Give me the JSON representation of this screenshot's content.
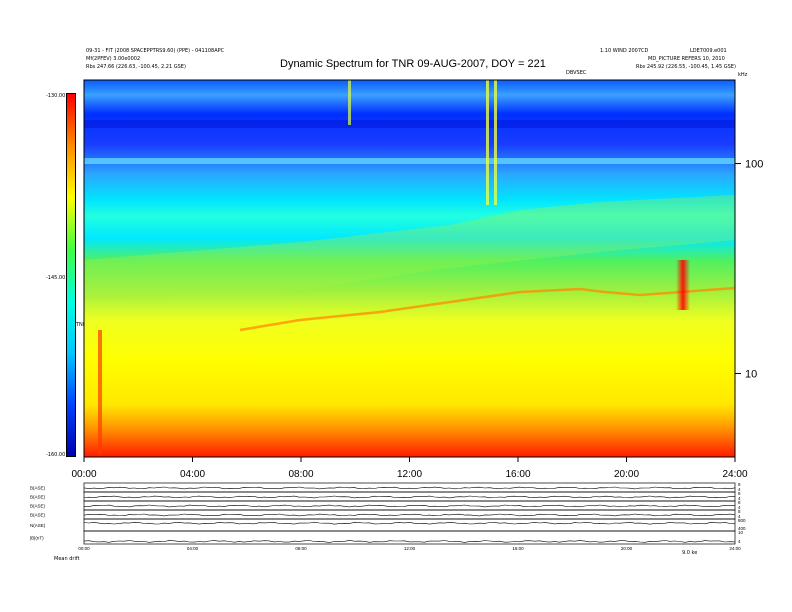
{
  "header": {
    "title": "Dynamic Spectrum for TNR 09-AUG-2007, DOY = 221",
    "left_line1": "09-31 - FIT (2008 SPACEPPTRS9.60) (PPE) - 041108APC",
    "left_line2": "Mf(2PFEV) 3.00e0002",
    "left_line3": "Rbs   247.66 (226.63, -100.45, 2.21 GSE)",
    "right_line1": "1.10 WIND 2007CD",
    "right_line2": "LDE7009.e001",
    "right_line3": "MD_PICTURE REFERS 10, 2010",
    "right_line4": "Rbs   245.92 (226.55, -100.45, 1.45 GSE)",
    "center_note": "DBVSEC",
    "freq_unit": "kHz"
  },
  "colorbar": {
    "tick_labels": [
      "-130.00",
      "-145.00",
      "-160.00"
    ],
    "unit_label": "TNR",
    "colors": [
      "#0000b0",
      "#0044ff",
      "#00c8ff",
      "#00ffe0",
      "#40ff40",
      "#ffff00",
      "#ff8c00",
      "#ff0000"
    ]
  },
  "chart_data": {
    "type": "heatmap",
    "title": "Dynamic Spectrum for TNR 09-AUG-2007, DOY = 221",
    "x": {
      "label": "",
      "ticks": [
        "00:00",
        "04:00",
        "08:00",
        "12:00",
        "16:00",
        "20:00",
        "24:00"
      ],
      "range_hours": [
        0,
        24
      ]
    },
    "y": {
      "scale": "log",
      "unit": "kHz",
      "ticks": [
        10,
        100
      ],
      "range": [
        4,
        250
      ]
    },
    "z": {
      "range": [
        -160,
        -130
      ],
      "ticks": [
        -130,
        -145,
        -160
      ]
    },
    "bands": [
      {
        "feature": "background red/orange floor",
        "freq_kHz": [
          4,
          5.5
        ],
        "level": "high"
      },
      {
        "feature": "yellow continuum",
        "freq_kHz": [
          5.5,
          30
        ],
        "level": "elevated"
      },
      {
        "feature": "green transition",
        "freq_kHz": [
          30,
          60
        ],
        "level": "medium"
      },
      {
        "feature": "cyan",
        "freq_kHz": [
          60,
          130
        ],
        "level": "low"
      },
      {
        "feature": "blue upper band",
        "freq_kHz": [
          130,
          250
        ],
        "level": "lowest"
      }
    ],
    "events": [
      {
        "feature": "plasma line (orange)",
        "time_h": [
          4,
          24
        ],
        "freq_kHz": [
          18,
          26
        ]
      },
      {
        "feature": "red burst",
        "time_h": 22,
        "freq_kHz": 24
      },
      {
        "feature": "type III-like vertical streak",
        "time_h": 0.6,
        "freq_kHz": [
          6,
          16
        ]
      },
      {
        "feature": "yellow spikes",
        "time_h": [
          14.8,
          15.2
        ],
        "freq_kHz": [
          70,
          250
        ]
      }
    ]
  },
  "panels": {
    "labels": [
      "B(ASE)",
      "B(ASE)",
      "B(ASE)",
      "B(ASE)",
      "N(ASE)",
      "|B|(nT)"
    ],
    "right_ticks": [
      [
        "8",
        "4"
      ],
      [
        "8",
        "4"
      ],
      [
        "8",
        "4"
      ],
      [
        "8",
        "4"
      ],
      [
        "800",
        "400"
      ],
      [
        "10",
        "4"
      ]
    ],
    "x_ticks": [
      "00:00",
      "04:00",
      "08:00",
      "12:00",
      "16:00",
      "20:00",
      "24:00"
    ],
    "footer_left": "Mean  drift",
    "footer_right": "9.0 ke"
  }
}
